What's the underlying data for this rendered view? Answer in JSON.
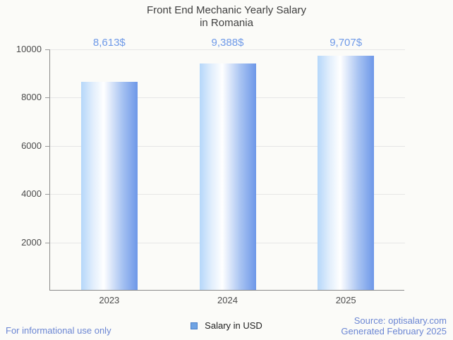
{
  "title": {
    "line1": "Front End Mechanic Yearly Salary",
    "line2": "in Romania"
  },
  "chart_data": {
    "type": "bar",
    "title": "Front End Mechanic Yearly Salary in Romania",
    "categories": [
      "2023",
      "2024",
      "2025"
    ],
    "values": [
      8613,
      9388,
      9707
    ],
    "value_labels": [
      "8,613$",
      "9,388$",
      "9,707$"
    ],
    "series": [
      {
        "name": "Salary in USD",
        "values": [
          8613,
          9388,
          9707
        ]
      }
    ],
    "xlabel": "",
    "ylabel": "",
    "ylim": [
      0,
      10000
    ],
    "yticks": [
      2000,
      4000,
      6000,
      8000,
      10000
    ],
    "grid": true,
    "legend_position": "bottom",
    "bar_gradient": [
      "#b5d7fa",
      "#ffffff",
      "#6d97e8"
    ]
  },
  "legend": {
    "label": "Salary in USD"
  },
  "footer": {
    "left": "For informational use only",
    "source": "Source: optisalary.com",
    "generated": "Generated February 2025"
  },
  "colors": {
    "background": "#fbfbf8",
    "title_text": "#3f3f3f",
    "tick_label": "#4c4c4c",
    "axis_line": "#8a8a8a",
    "grid_line": "#e6e6e6",
    "value_label": "#6f9ae8",
    "footer_text": "#6b86d3",
    "legend_swatch_fill": "#6fa3e3",
    "legend_swatch_border": "#4a7fc9"
  }
}
